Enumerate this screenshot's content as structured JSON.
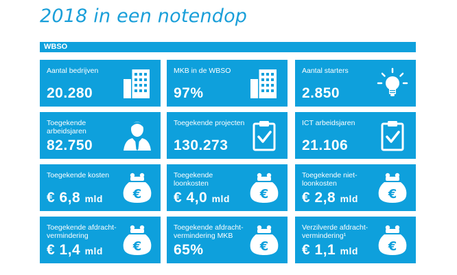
{
  "page": {
    "title": "2018 in een notendop",
    "section": "WBSO",
    "accent_color": "#0ea0dc",
    "title_color": "#1a9fd9"
  },
  "tiles": [
    {
      "label": "Aantal bedrijven",
      "value": "20.280",
      "unit": "",
      "icon": "building-icon"
    },
    {
      "label": "MKB in de WBSO",
      "value": "97%",
      "unit": "",
      "icon": "building-icon"
    },
    {
      "label": "Aantal starters",
      "value": "2.850",
      "unit": "",
      "icon": "lightbulb-icon"
    },
    {
      "label": "Toegekende arbeidsjaren",
      "value": "82.750",
      "unit": "",
      "icon": "person-icon"
    },
    {
      "label": "Toegekende projecten",
      "value": "130.273",
      "unit": "",
      "icon": "clipboard-check-icon"
    },
    {
      "label": "ICT arbeidsjaren",
      "value": "21.106",
      "unit": "",
      "icon": "clipboard-check-icon"
    },
    {
      "label": "Toegekende kosten",
      "value": "€ 6,8",
      "unit": "mld",
      "icon": "euro-purse-icon"
    },
    {
      "label": "Toegekende loonkosten",
      "value": "€ 4,0",
      "unit": "mld",
      "icon": "euro-purse-icon"
    },
    {
      "label": "Toegekende niet-loonkosten",
      "value": "€ 2,8",
      "unit": "mld",
      "icon": "euro-purse-icon"
    },
    {
      "label": "Toegekende afdracht-vermindering",
      "value": "€ 1,4",
      "unit": "mld",
      "icon": "euro-purse-icon"
    },
    {
      "label": "Toegekende afdracht-vermindering MKB",
      "value": "65%",
      "unit": "",
      "icon": "euro-purse-icon"
    },
    {
      "label": "Verzilverde afdracht-vermindering¹",
      "value": "€ 1,1",
      "unit": "mld",
      "icon": "euro-purse-icon"
    }
  ]
}
